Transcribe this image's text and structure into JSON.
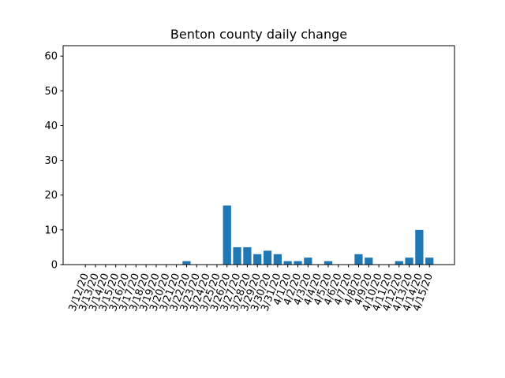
{
  "chart_data": {
    "type": "bar",
    "title": "Benton county daily change",
    "xlabel": "",
    "ylabel": "",
    "ylim": [
      0,
      63
    ],
    "yticks": [
      0,
      10,
      20,
      30,
      40,
      50,
      60
    ],
    "grid": false,
    "bar_color": "#1f77b4",
    "categories": [
      "3/12/20",
      "3/13/20",
      "3/14/20",
      "3/15/20",
      "3/16/20",
      "3/17/20",
      "3/18/20",
      "3/19/20",
      "3/20/20",
      "3/21/20",
      "3/22/20",
      "3/23/20",
      "3/24/20",
      "3/25/20",
      "3/26/20",
      "3/27/20",
      "3/28/20",
      "3/29/20",
      "3/30/20",
      "3/31/20",
      "4/1/20",
      "4/2/20",
      "4/3/20",
      "4/4/20",
      "4/5/20",
      "4/6/20",
      "4/7/20",
      "4/8/20",
      "4/9/20",
      "4/10/20",
      "4/11/20",
      "4/12/20",
      "4/13/20",
      "4/14/20",
      "4/15/20"
    ],
    "values": [
      0,
      0,
      0,
      0,
      0,
      0,
      0,
      0,
      0,
      0,
      1,
      0,
      0,
      0,
      17,
      5,
      5,
      3,
      4,
      3,
      1,
      1,
      2,
      0,
      1,
      0,
      0,
      3,
      2,
      0,
      0,
      1,
      2,
      10,
      2
    ]
  }
}
